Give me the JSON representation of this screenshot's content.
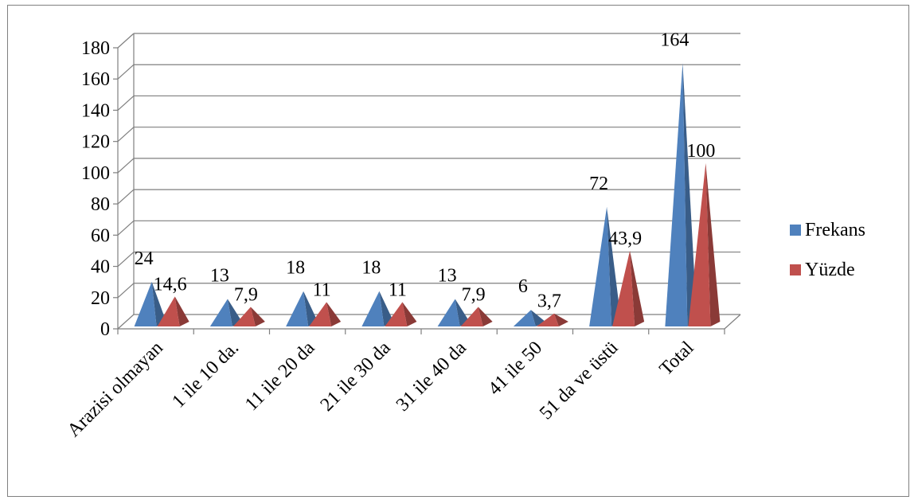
{
  "chart_data": {
    "type": "bar",
    "bar_shape": "3d-pyramid",
    "categories": [
      "Arazisi olmayan",
      "1 ile 10 da.",
      "11 ile 20 da",
      "21 ile 30 da",
      "31 ile 40 da",
      "41 ile 50",
      "51 da ve üstü",
      "Total"
    ],
    "series": [
      {
        "name": "Frekans",
        "values": [
          24,
          13,
          18,
          18,
          13,
          6,
          72,
          164
        ],
        "labels": [
          "24",
          "13",
          "18",
          "18",
          "13",
          "6",
          "72",
          "164"
        ],
        "color": "#4F81BD"
      },
      {
        "name": "Yüzde",
        "values": [
          14.6,
          7.9,
          11,
          11,
          7.9,
          3.7,
          43.9,
          100
        ],
        "labels": [
          "14,6",
          "7,9",
          "11",
          "11",
          "7,9",
          "3,7",
          "43,9",
          "100"
        ],
        "color": "#C0504D"
      }
    ],
    "ylim": [
      0,
      180
    ],
    "yticks": [
      "0",
      "20",
      "40",
      "60",
      "80",
      "100",
      "120",
      "140",
      "160",
      "180"
    ],
    "grid": true,
    "legend": "right"
  }
}
